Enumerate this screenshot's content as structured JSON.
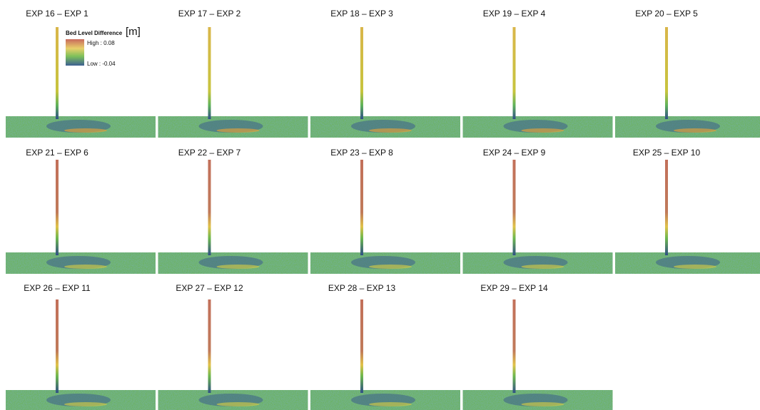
{
  "panels": [
    {
      "label": "EXP 16 – EXP 1"
    },
    {
      "label": "EXP 17 – EXP 2"
    },
    {
      "label": "EXP 18 – EXP 3"
    },
    {
      "label": "EXP 19 – EXP 4"
    },
    {
      "label": "EXP 20 – EXP 5"
    },
    {
      "label": "EXP 21 – EXP 6"
    },
    {
      "label": "EXP 22 – EXP 7"
    },
    {
      "label": "EXP 23 – EXP 8"
    },
    {
      "label": "EXP 24 – EXP 9"
    },
    {
      "label": "EXP 25 – EXP 10"
    },
    {
      "label": "EXP 26 – EXP 11"
    },
    {
      "label": "EXP  27 – EXP 12"
    },
    {
      "label": "EXP 28 – EXP 13"
    },
    {
      "label": "EXP 29 – EXP 14"
    }
  ],
  "legend": {
    "title": "Bed Level Difference",
    "unit": "[m]",
    "high": "High : 0.08",
    "low": "Low : -0.04"
  }
}
